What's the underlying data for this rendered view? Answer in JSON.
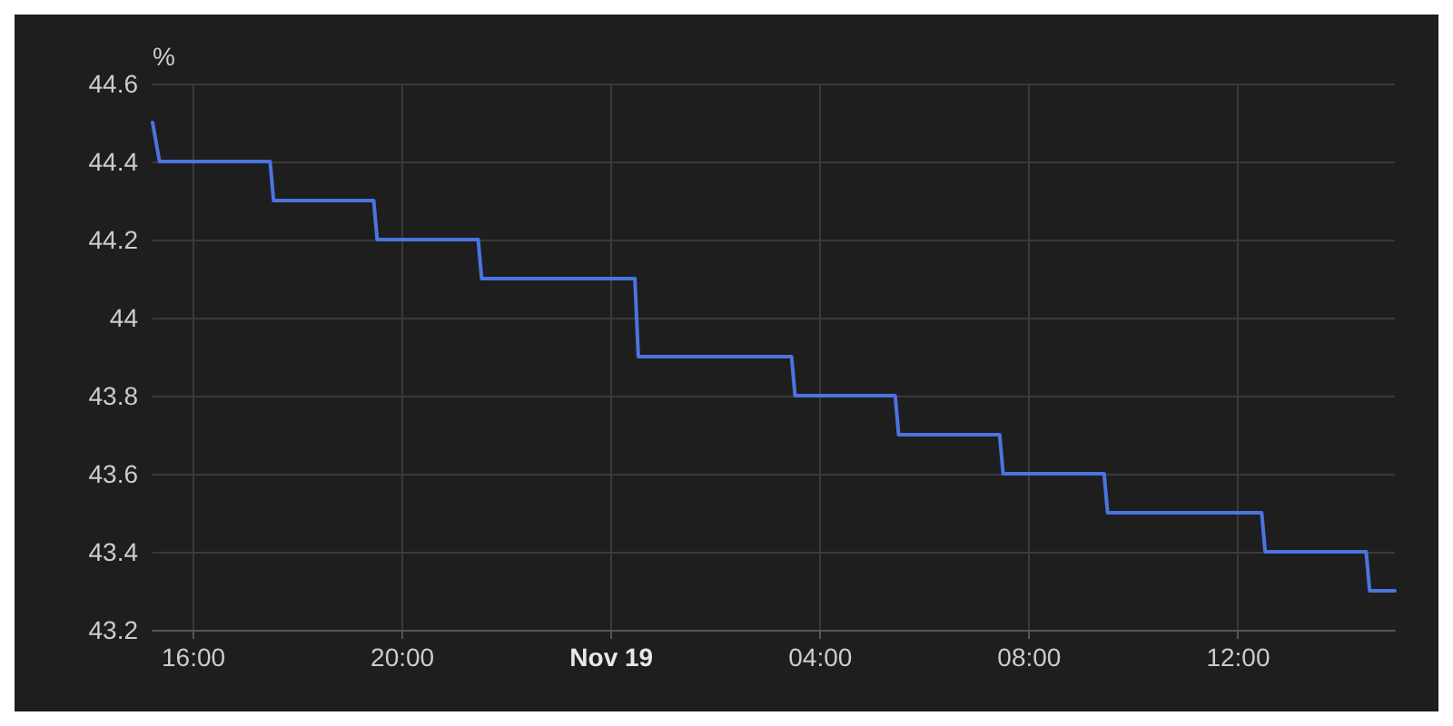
{
  "chart_data": {
    "type": "line",
    "ylabel": "%",
    "x": [
      "--11-18T15:13",
      "--11-18T15:21",
      "--11-18T17:28",
      "--11-18T17:32",
      "--11-18T19:27",
      "--11-18T19:31",
      "--11-18T21:27",
      "--11-18T21:31",
      "--11-19T00:27",
      "--11-19T00:31",
      "--11-19T03:27",
      "--11-19T03:31",
      "--11-19T05:26",
      "--11-19T05:30",
      "--11-19T07:26",
      "--11-19T07:30",
      "--11-19T09:26",
      "--11-19T09:30",
      "--11-19T12:27",
      "--11-19T12:31",
      "--11-19T14:27",
      "--11-19T14:31",
      "--11-19T15:00"
    ],
    "series": [
      {
        "color": "#4c74e0",
        "values": [
          44.5,
          44.4,
          44.4,
          44.3,
          44.3,
          44.2,
          44.2,
          44.1,
          44.1,
          43.9,
          43.9,
          43.8,
          43.8,
          43.7,
          43.7,
          43.6,
          43.6,
          43.5,
          43.5,
          43.4,
          43.4,
          43.3,
          43.3
        ]
      }
    ],
    "xlim": [
      "--11-18T15:13",
      "--11-19T15:00"
    ],
    "xticks": [
      {
        "value": "--11-18T16:00",
        "label": "16:00"
      },
      {
        "value": "--11-18T20:00",
        "label": "20:00"
      },
      {
        "value": "--11-19T00:00",
        "label": "Nov 19"
      },
      {
        "value": "--11-19T04:00",
        "label": "04:00"
      },
      {
        "value": "--11-19T08:00",
        "label": "08:00"
      },
      {
        "value": "--11-19T12:00",
        "label": "12:00"
      }
    ],
    "ylim": [
      43.2,
      44.6
    ],
    "yticks": [
      43.2,
      43.4,
      43.6,
      43.8,
      44,
      44.2,
      44.4,
      44.6
    ],
    "grid": true,
    "marker": "none",
    "line_style": "solid"
  }
}
